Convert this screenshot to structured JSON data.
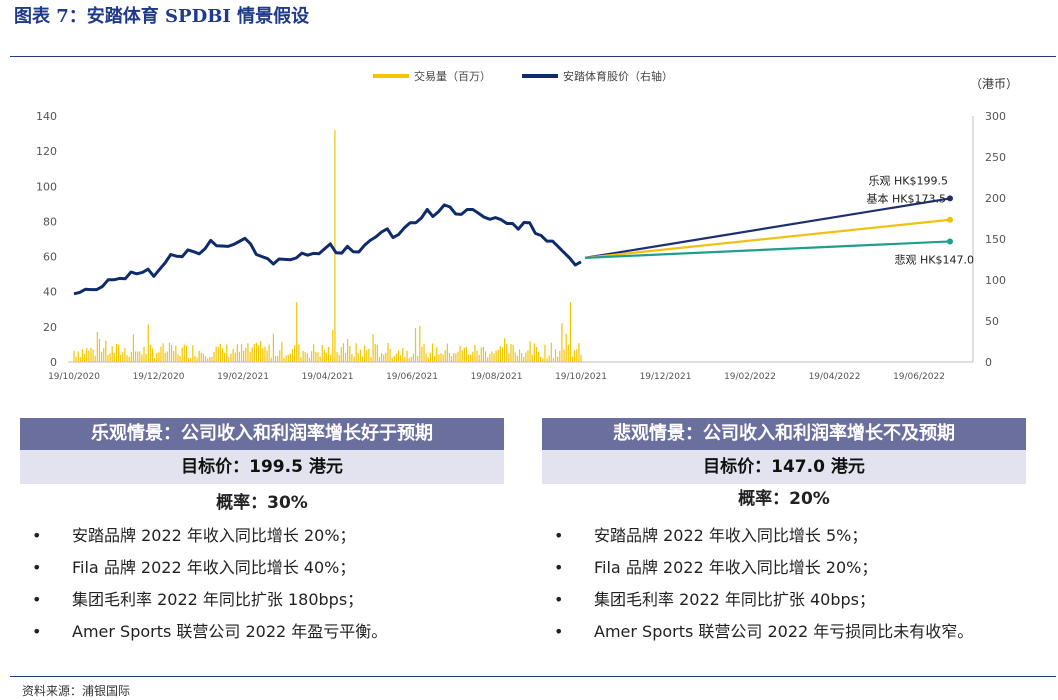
{
  "header": {
    "figure_title": "图表 7：安踏体育 SPDBI 情景假设"
  },
  "chart_data": {
    "type": "bar+line",
    "legend": [
      "交易量（百万）",
      "安踏体育股价（右轴）"
    ],
    "right_unit": "（港币）",
    "left_axis": {
      "ylim": [
        0,
        140
      ],
      "ticks": [
        "0",
        "20",
        "40",
        "60",
        "80",
        "100",
        "120",
        "140"
      ]
    },
    "right_axis": {
      "ylim": [
        0,
        300
      ],
      "ticks": [
        "0",
        "50",
        "100",
        "150",
        "200",
        "250",
        "300"
      ]
    },
    "x_ticks": [
      "19/10/2020",
      "19/12/2020",
      "19/02/2021",
      "19/04/2021",
      "19/06/2021",
      "19/08/2021",
      "19/10/2021",
      "19/12/2021",
      "19/02/2022",
      "19/04/2022",
      "19/06/2022"
    ],
    "price_series": {
      "name": "安踏体育股价（右轴）",
      "start": "19/10/2020",
      "end": "19/10/2021",
      "values_left_scale": [
        40,
        40,
        41,
        40,
        42,
        43,
        46,
        48,
        48,
        47,
        50,
        51,
        51,
        52,
        50,
        53,
        56,
        60,
        61,
        60,
        63,
        64,
        62,
        64,
        68,
        67,
        66,
        65,
        68,
        69,
        70,
        66,
        62,
        60,
        58,
        57,
        59,
        58,
        57,
        60,
        62,
        60,
        63,
        62,
        64,
        66,
        63,
        62,
        65,
        64,
        63,
        66,
        68,
        72,
        74,
        75,
        72,
        73,
        76,
        78,
        80,
        82,
        86,
        84,
        86,
        89,
        87,
        85,
        84,
        86,
        88,
        85,
        82,
        80,
        83,
        81,
        78,
        80,
        76,
        79,
        78,
        74,
        72,
        68,
        70,
        66,
        62,
        58,
        56,
        57
      ]
    },
    "volume_series": {
      "name": "交易量（百万）",
      "spike_label_value": 132,
      "late_spike_value": 34
    },
    "scenarios": [
      {
        "label": "乐观 HK$199.5",
        "value": 199.5,
        "color": "#1f2f6e"
      },
      {
        "label": "基本 HK$173.5",
        "value": 173.5,
        "color": "#f2c012"
      },
      {
        "label": "悲观 HK$147.0",
        "value": 147.0,
        "color": "#1f9e8c"
      }
    ],
    "scenario_start_value": 127,
    "scenario_start": "19/10/2021",
    "scenario_end": "19/09/2022",
    "colors": {
      "volume": "#f5c400",
      "price": "#0f2b6b",
      "axis": "#bfbfbf"
    }
  },
  "optimistic": {
    "heading": "乐观情景：公司收入和利润率增长好于预期",
    "target": "目标价：199.5 港元",
    "prob": "概率：30%",
    "bullets": [
      "安踏品牌 2022 年收入同比增长 20%；",
      "Fila 品牌 2022 年收入同比增长 40%；",
      "集团毛利率 2022 年同比扩张 180bps；",
      "Amer Sports 联营公司 2022 年盈亏平衡。"
    ]
  },
  "pessimistic": {
    "heading": "悲观情景：公司收入和利润率增长不及预期",
    "target": "目标价：147.0 港元",
    "prob": "概率：20%",
    "bullets": [
      "安踏品牌 2022 年收入同比增长 5%；",
      "Fila 品牌 2022 年收入同比增长 20%；",
      "集团毛利率 2022 年同比扩张 40bps；",
      "Amer Sports 联营公司 2022 年亏损同比未有收窄。"
    ]
  },
  "footer": {
    "source": "资料来源：浦银国际"
  }
}
